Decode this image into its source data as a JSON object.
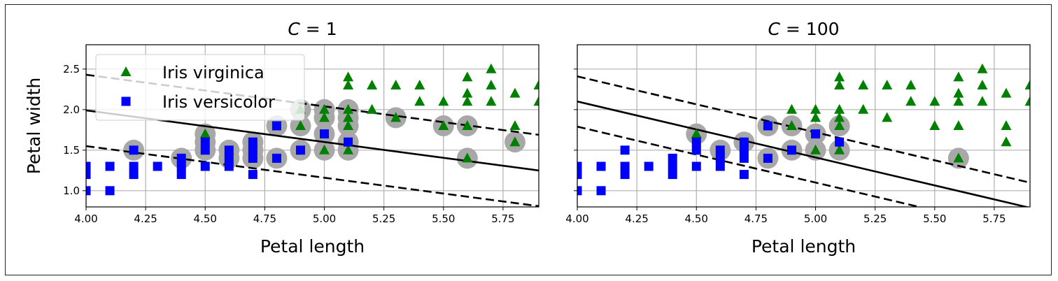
{
  "chart_data": [
    {
      "type": "scatter",
      "title_main": "C",
      "title_rest": " = 1",
      "xlabel": "Petal length",
      "ylabel": "Petal width",
      "xlim": [
        4.0,
        5.9
      ],
      "ylim": [
        0.8,
        2.8
      ],
      "xticks": [
        "4.00",
        "4.25",
        "4.50",
        "4.75",
        "5.00",
        "5.25",
        "5.50",
        "5.75"
      ],
      "yticks": [
        "1.0",
        "1.5",
        "2.0",
        "2.5"
      ],
      "grid": true,
      "legend": {
        "placement": "upper-left",
        "entries": [
          {
            "label": "Iris virginica",
            "marker": "triangle",
            "color": "#008000"
          },
          {
            "label": "Iris versicolor",
            "marker": "square",
            "color": "#0000ff"
          }
        ]
      },
      "decision_boundary": {
        "intercept": 3.55,
        "slope": -0.39,
        "margin": 0.44
      },
      "series": [
        {
          "name": "Iris virginica",
          "marker": "triangle",
          "color": "#008000",
          "points": [
            [
              4.5,
              1.7
            ],
            [
              4.9,
              1.8
            ],
            [
              4.9,
              2.0
            ],
            [
              5.0,
              1.5
            ],
            [
              5.0,
              1.9
            ],
            [
              5.0,
              2.0
            ],
            [
              5.1,
              1.5
            ],
            [
              5.1,
              1.8
            ],
            [
              5.1,
              1.9
            ],
            [
              5.1,
              2.0
            ],
            [
              5.1,
              2.3
            ],
            [
              5.1,
              2.4
            ],
            [
              5.2,
              2.0
            ],
            [
              5.2,
              2.3
            ],
            [
              5.3,
              1.9
            ],
            [
              5.3,
              2.3
            ],
            [
              5.4,
              2.1
            ],
            [
              5.4,
              2.3
            ],
            [
              5.5,
              1.8
            ],
            [
              5.5,
              2.1
            ],
            [
              5.6,
              1.4
            ],
            [
              5.6,
              1.8
            ],
            [
              5.6,
              2.1
            ],
            [
              5.6,
              2.2
            ],
            [
              5.6,
              2.4
            ],
            [
              5.7,
              2.1
            ],
            [
              5.7,
              2.3
            ],
            [
              5.7,
              2.5
            ],
            [
              5.8,
              1.6
            ],
            [
              5.8,
              1.8
            ],
            [
              5.8,
              2.2
            ],
            [
              5.9,
              2.1
            ],
            [
              5.9,
              2.3
            ]
          ]
        },
        {
          "name": "Iris versicolor",
          "marker": "square",
          "color": "#0000ff",
          "points": [
            [
              4.0,
              1.0
            ],
            [
              4.0,
              1.2
            ],
            [
              4.0,
              1.3
            ],
            [
              4.1,
              1.0
            ],
            [
              4.1,
              1.3
            ],
            [
              4.2,
              1.2
            ],
            [
              4.2,
              1.3
            ],
            [
              4.2,
              1.5
            ],
            [
              4.3,
              1.3
            ],
            [
              4.4,
              1.2
            ],
            [
              4.4,
              1.3
            ],
            [
              4.4,
              1.4
            ],
            [
              4.5,
              1.3
            ],
            [
              4.5,
              1.5
            ],
            [
              4.5,
              1.6
            ],
            [
              4.6,
              1.3
            ],
            [
              4.6,
              1.4
            ],
            [
              4.6,
              1.5
            ],
            [
              4.7,
              1.2
            ],
            [
              4.7,
              1.4
            ],
            [
              4.7,
              1.5
            ],
            [
              4.7,
              1.6
            ],
            [
              4.8,
              1.4
            ],
            [
              4.8,
              1.8
            ],
            [
              4.9,
              1.5
            ],
            [
              5.0,
              1.7
            ],
            [
              5.1,
              1.6
            ]
          ]
        }
      ],
      "support_vectors": [
        [
          4.2,
          1.5
        ],
        [
          4.4,
          1.4
        ],
        [
          4.5,
          1.5
        ],
        [
          4.5,
          1.6
        ],
        [
          4.5,
          1.7
        ],
        [
          4.6,
          1.4
        ],
        [
          4.6,
          1.5
        ],
        [
          4.7,
          1.4
        ],
        [
          4.7,
          1.5
        ],
        [
          4.7,
          1.6
        ],
        [
          4.8,
          1.4
        ],
        [
          4.8,
          1.8
        ],
        [
          4.9,
          1.5
        ],
        [
          4.9,
          1.8
        ],
        [
          4.9,
          2.0
        ],
        [
          5.0,
          1.5
        ],
        [
          5.0,
          1.7
        ],
        [
          5.0,
          1.9
        ],
        [
          5.0,
          2.0
        ],
        [
          5.1,
          1.5
        ],
        [
          5.1,
          1.6
        ],
        [
          5.1,
          1.8
        ],
        [
          5.1,
          1.9
        ],
        [
          5.1,
          2.0
        ],
        [
          5.3,
          1.9
        ],
        [
          5.5,
          1.8
        ],
        [
          5.6,
          1.4
        ],
        [
          5.6,
          1.8
        ],
        [
          5.8,
          1.6
        ]
      ]
    },
    {
      "type": "scatter",
      "title_main": "C",
      "title_rest": " = 100",
      "xlabel": "Petal length",
      "ylabel": "",
      "xlim": [
        4.0,
        5.9
      ],
      "ylim": [
        0.8,
        2.8
      ],
      "xticks": [
        "4.00",
        "4.25",
        "4.50",
        "4.75",
        "5.00",
        "5.25",
        "5.50",
        "5.75"
      ],
      "yticks": [],
      "grid": true,
      "decision_boundary": {
        "intercept": 4.86,
        "slope": -0.69,
        "margin": 0.31
      },
      "series": [
        {
          "name": "Iris virginica",
          "marker": "triangle",
          "color": "#008000",
          "points": [
            [
              4.5,
              1.7
            ],
            [
              4.9,
              1.8
            ],
            [
              4.9,
              2.0
            ],
            [
              5.0,
              1.5
            ],
            [
              5.0,
              1.9
            ],
            [
              5.0,
              2.0
            ],
            [
              5.1,
              1.5
            ],
            [
              5.1,
              1.8
            ],
            [
              5.1,
              1.9
            ],
            [
              5.1,
              2.0
            ],
            [
              5.1,
              2.3
            ],
            [
              5.1,
              2.4
            ],
            [
              5.2,
              2.0
            ],
            [
              5.2,
              2.3
            ],
            [
              5.3,
              1.9
            ],
            [
              5.3,
              2.3
            ],
            [
              5.4,
              2.1
            ],
            [
              5.4,
              2.3
            ],
            [
              5.5,
              1.8
            ],
            [
              5.5,
              2.1
            ],
            [
              5.6,
              1.4
            ],
            [
              5.6,
              1.8
            ],
            [
              5.6,
              2.1
            ],
            [
              5.6,
              2.2
            ],
            [
              5.6,
              2.4
            ],
            [
              5.7,
              2.1
            ],
            [
              5.7,
              2.3
            ],
            [
              5.7,
              2.5
            ],
            [
              5.8,
              1.6
            ],
            [
              5.8,
              1.8
            ],
            [
              5.8,
              2.2
            ],
            [
              5.9,
              2.1
            ],
            [
              5.9,
              2.3
            ]
          ]
        },
        {
          "name": "Iris versicolor",
          "marker": "square",
          "color": "#0000ff",
          "points": [
            [
              4.0,
              1.0
            ],
            [
              4.0,
              1.2
            ],
            [
              4.0,
              1.3
            ],
            [
              4.1,
              1.0
            ],
            [
              4.1,
              1.3
            ],
            [
              4.2,
              1.2
            ],
            [
              4.2,
              1.3
            ],
            [
              4.2,
              1.5
            ],
            [
              4.3,
              1.3
            ],
            [
              4.4,
              1.2
            ],
            [
              4.4,
              1.3
            ],
            [
              4.4,
              1.4
            ],
            [
              4.5,
              1.3
            ],
            [
              4.5,
              1.5
            ],
            [
              4.5,
              1.6
            ],
            [
              4.6,
              1.3
            ],
            [
              4.6,
              1.4
            ],
            [
              4.6,
              1.5
            ],
            [
              4.7,
              1.2
            ],
            [
              4.7,
              1.4
            ],
            [
              4.7,
              1.5
            ],
            [
              4.7,
              1.6
            ],
            [
              4.8,
              1.4
            ],
            [
              4.8,
              1.8
            ],
            [
              4.9,
              1.5
            ],
            [
              5.0,
              1.7
            ],
            [
              5.1,
              1.6
            ]
          ]
        }
      ],
      "support_vectors": [
        [
          4.5,
          1.7
        ],
        [
          4.6,
          1.5
        ],
        [
          4.7,
          1.6
        ],
        [
          4.8,
          1.4
        ],
        [
          4.8,
          1.8
        ],
        [
          4.9,
          1.5
        ],
        [
          4.9,
          1.8
        ],
        [
          5.0,
          1.5
        ],
        [
          5.0,
          1.7
        ],
        [
          5.1,
          1.5
        ],
        [
          5.1,
          1.8
        ],
        [
          5.6,
          1.4
        ]
      ]
    }
  ]
}
